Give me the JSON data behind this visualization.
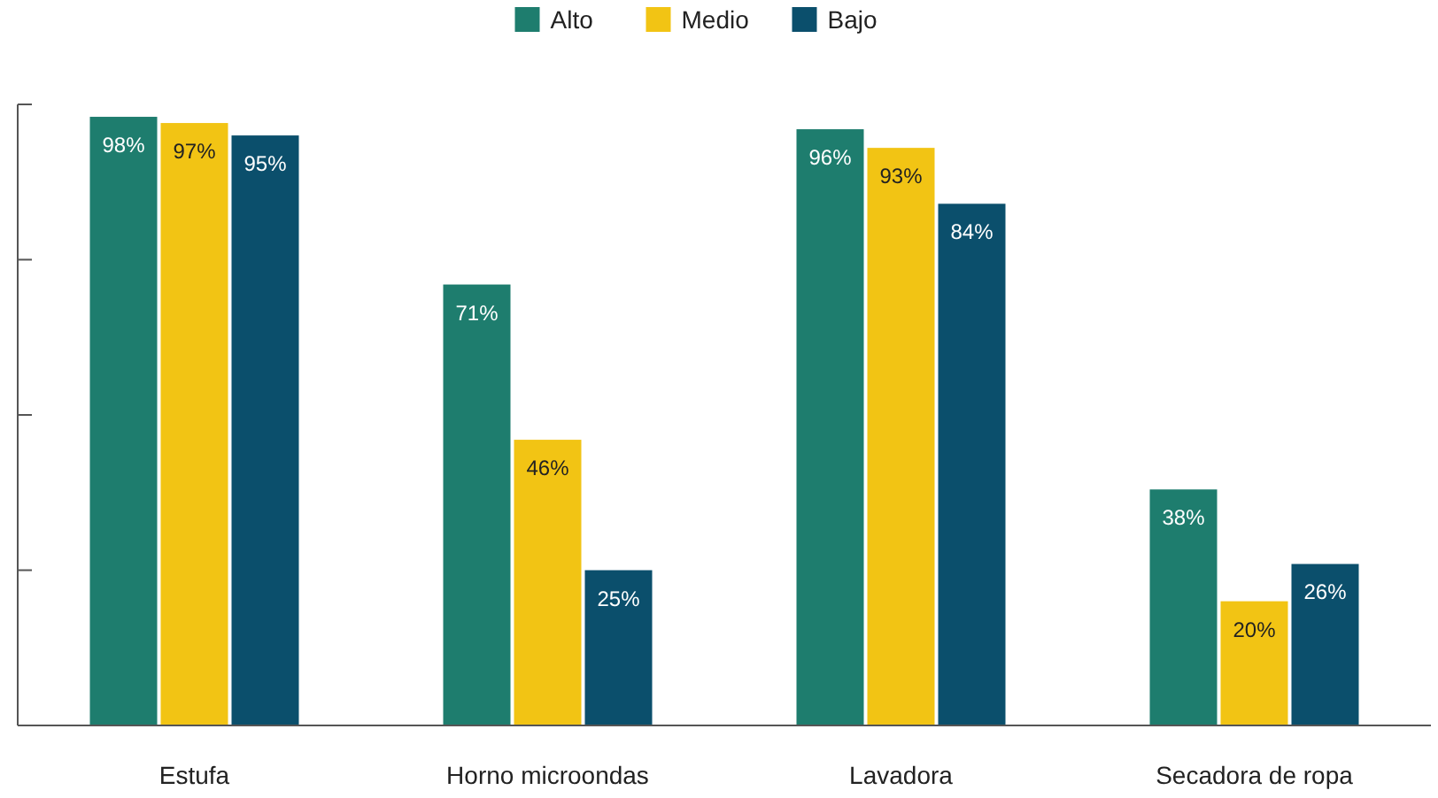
{
  "chart_data": {
    "type": "bar",
    "categories": [
      "Estufa",
      "Horno microondas",
      "Lavadora",
      "Secadora de ropa"
    ],
    "series": [
      {
        "name": "Alto",
        "color": "#1e7d6e",
        "values": [
          98,
          71,
          96,
          38
        ],
        "value_labels": [
          "98%",
          "71%",
          "96%",
          "38%"
        ]
      },
      {
        "name": "Medio",
        "color": "#f2c414",
        "values": [
          97,
          46,
          93,
          20
        ],
        "value_labels": [
          "97%",
          "46%",
          "93%",
          "20%"
        ]
      },
      {
        "name": "Bajo",
        "color": "#0b4f6c",
        "values": [
          95,
          25,
          84,
          26
        ],
        "value_labels": [
          "95%",
          "25%",
          "84%",
          "26%"
        ]
      }
    ],
    "ylim": [
      0,
      100
    ],
    "yticks": [
      {
        "value": 0,
        "label": null
      },
      {
        "value": 25,
        "label": null
      },
      {
        "value": 50,
        "label": null
      },
      {
        "value": 75,
        "label": null
      },
      {
        "value": 100,
        "label": null
      }
    ],
    "grid": false,
    "legend": "top",
    "tick_labels": "x"
  }
}
